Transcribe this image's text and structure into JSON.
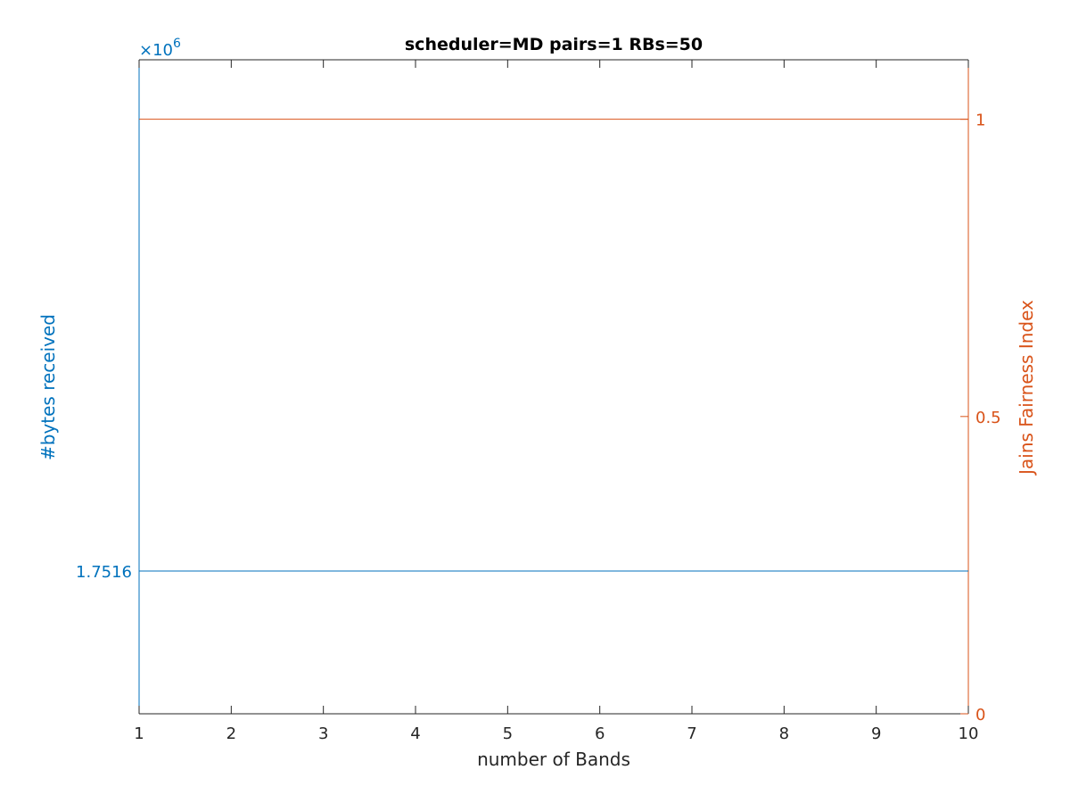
{
  "chart_data": {
    "type": "line",
    "title": "scheduler=MD pairs=1 RBs=50",
    "xlabel": "number of Bands",
    "x": [
      1,
      2,
      3,
      4,
      5,
      6,
      7,
      8,
      9,
      10
    ],
    "xlim": [
      1,
      10
    ],
    "xticks": [
      "1",
      "2",
      "3",
      "4",
      "5",
      "6",
      "7",
      "8",
      "9",
      "10"
    ],
    "y_left": {
      "label": "#bytes received",
      "exponent_label": "×10",
      "exponent_power": "6",
      "ytick_label": "1.7516",
      "ytick_value": 1.7516,
      "color": "#0072BD"
    },
    "y_right": {
      "label": "Jains Fairness Index",
      "ylim": [
        0,
        1.1
      ],
      "yticks": [
        {
          "value": 0,
          "label": "0"
        },
        {
          "value": 0.5,
          "label": "0.5"
        },
        {
          "value": 1,
          "label": "1"
        }
      ],
      "color": "#D95319"
    },
    "series": [
      {
        "axis": "left",
        "color": "#0072BD",
        "values": [
          1.7516,
          1.7516,
          1.7516,
          1.7516,
          1.7516,
          1.7516,
          1.7516,
          1.7516,
          1.7516,
          1.7516
        ]
      },
      {
        "axis": "right",
        "color": "#D95319",
        "values": [
          1,
          1,
          1,
          1,
          1,
          1,
          1,
          1,
          1,
          1
        ]
      }
    ]
  }
}
